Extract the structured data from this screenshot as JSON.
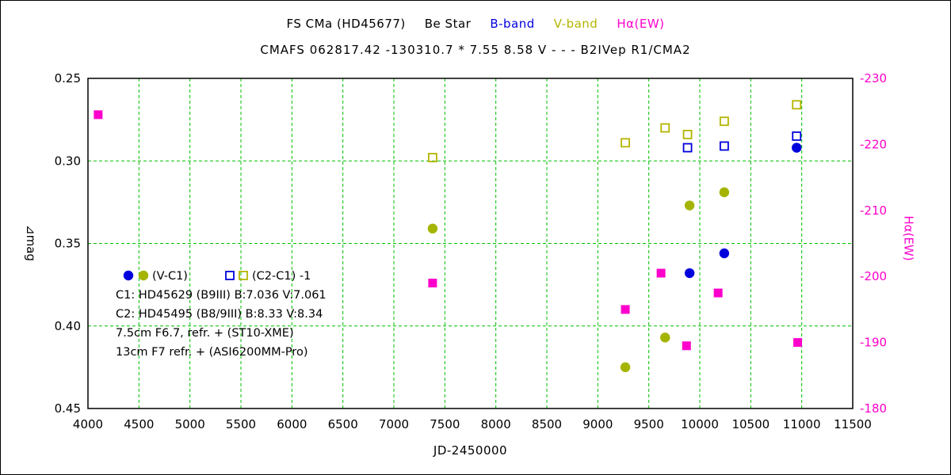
{
  "chart_data": {
    "type": "scatter",
    "title_segments": [
      {
        "text": "FS CMa (HD45677)",
        "color": "#000000"
      },
      {
        "text": "Be Star",
        "color": "#000000"
      },
      {
        "text": "B-band",
        "color": "#0000dd"
      },
      {
        "text": "V-band",
        "color": "#b4b400"
      },
      {
        "text": "Hα(EW)",
        "color": "#ff00cc"
      }
    ],
    "subtitle": "CMAFS 062817.42 -130310.7 * 7.55 8.58 V - - - B2IVep R1/CMA2",
    "xlabel": "JD-2450000",
    "ylabel_left": "⊿mag",
    "ylabel_right": "Hα(EW)",
    "x_axis": {
      "min": 4000,
      "max": 11500,
      "ticks": [
        4000,
        4500,
        5000,
        5500,
        6000,
        6500,
        7000,
        7500,
        8000,
        8500,
        9000,
        9500,
        10000,
        10500,
        11000,
        11500
      ]
    },
    "y_left": {
      "range": [
        0.25,
        0.45
      ],
      "ticks": [
        0.25,
        0.3,
        0.35,
        0.4,
        0.45
      ],
      "color": "#000000"
    },
    "y_right": {
      "range": [
        -230,
        -180
      ],
      "ticks": [
        -230,
        -220,
        -210,
        -200,
        -190,
        -180
      ],
      "color": "#ff00cc"
    },
    "grid": {
      "color": "#00c000",
      "style": "dashed"
    },
    "series": [
      {
        "id": "b-band-v-c1",
        "name": "B-band (V-C1)",
        "marker": "circle",
        "fill": "solid",
        "color": "#0000dd",
        "axis": "left",
        "points": [
          [
            9900,
            0.368
          ],
          [
            10240,
            0.356
          ],
          [
            10950,
            0.292
          ]
        ]
      },
      {
        "id": "v-band-v-c1",
        "name": "V-band (V-C1)",
        "marker": "circle",
        "fill": "solid",
        "color": "#a4b400",
        "axis": "left",
        "points": [
          [
            7380,
            0.341
          ],
          [
            9270,
            0.425
          ],
          [
            9660,
            0.407
          ],
          [
            9900,
            0.327
          ],
          [
            10240,
            0.319
          ]
        ]
      },
      {
        "id": "b-band-c2-c1",
        "name": "B-band (C2-C1) -1",
        "marker": "square",
        "fill": "open",
        "color": "#0000dd",
        "axis": "left",
        "points": [
          [
            9880,
            0.292
          ],
          [
            10240,
            0.291
          ],
          [
            10950,
            0.285
          ]
        ]
      },
      {
        "id": "v-band-c2-c1",
        "name": "V-band (C2-C1) -1",
        "marker": "square",
        "fill": "open",
        "color": "#b4b400",
        "axis": "left",
        "points": [
          [
            7380,
            0.298
          ],
          [
            9270,
            0.289
          ],
          [
            9660,
            0.28
          ],
          [
            9880,
            0.284
          ],
          [
            10240,
            0.276
          ],
          [
            10950,
            0.266
          ]
        ]
      },
      {
        "id": "halpha-ew",
        "name": "Hα(EW)",
        "marker": "square",
        "fill": "solid",
        "color": "#ff00cc",
        "axis": "right",
        "points": [
          [
            4100,
            -224.5
          ],
          [
            7380,
            -199
          ],
          [
            9270,
            -195
          ],
          [
            9620,
            -200.5
          ],
          [
            9870,
            -189.5
          ],
          [
            10180,
            -197.5
          ],
          [
            10960,
            -190
          ]
        ]
      }
    ],
    "legend": {
      "row1_left": "(V-C1)",
      "row1_right": "(C2-C1) -1",
      "lines": [
        "C1: HD45629 (B9III)  B:7.036 V:7.061",
        "C2: HD45495 (B8/9III)  B:8.33 V:8.34",
        "7.5cm  F6.7,  refr.  +  (ST10-XME)",
        "13cm  F7  refr.  +  (ASI6200MM-Pro)"
      ]
    }
  }
}
